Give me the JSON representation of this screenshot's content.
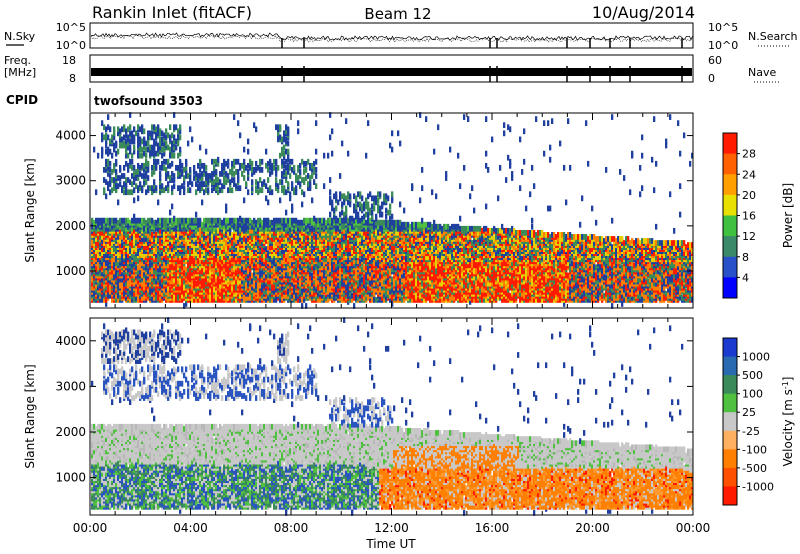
{
  "header": {
    "station": "Rankin Inlet (fitACF)",
    "beam": "Beam 12",
    "date": "10/Aug/2014"
  },
  "top_strip": {
    "left_label": "N.Sky",
    "right_label": "N.Search",
    "left_ticks": [
      "10^5",
      "10^0"
    ],
    "right_ticks": [
      "10^5",
      "10^0"
    ]
  },
  "freq_strip": {
    "left_label_1": "Freq.",
    "left_label_2": "[MHz]",
    "right_label": "Nave",
    "left_ticks": [
      "18",
      "8"
    ],
    "right_ticks": [
      "60",
      "0"
    ]
  },
  "cpid_strip": {
    "label": "CPID",
    "value": "twofsound 3503"
  },
  "colors": {
    "blue": "#1a1aff",
    "navy": "#2040a0",
    "green": "#3a8a5a",
    "lgreen": "#50c040",
    "yellow": "#e8d000",
    "orange": "#ff8000",
    "red": "#ff1a00",
    "gray": "#c8c8c8",
    "dblue": "#2a55c0",
    "vorange": "#ff7f00"
  },
  "chart_data": [
    {
      "type": "heatmap",
      "name": "power",
      "ylabel": "Slant Range [km]",
      "xlabel": "Time UT",
      "xticks": [
        "00:00",
        "04:00",
        "08:00",
        "12:00",
        "16:00",
        "20:00",
        "00:00"
      ],
      "xlim_hours": [
        0,
        24
      ],
      "ylim": [
        180,
        4500
      ],
      "yticks": [
        1000,
        2000,
        3000,
        4000
      ],
      "colorbar": {
        "label": "Power [dB]",
        "ticks": [
          "4",
          "8",
          "12",
          "16",
          "20",
          "24",
          "28"
        ],
        "colors": [
          "#0000ff",
          "#2850c8",
          "#3a8a6a",
          "#40c040",
          "#e8e000",
          "#ffa000",
          "#ff6000",
          "#ff1a00"
        ]
      }
    },
    {
      "type": "heatmap",
      "name": "velocity",
      "ylabel": "Slant Range [km]",
      "xlabel": "Time UT",
      "xticks": [
        "00:00",
        "04:00",
        "08:00",
        "12:00",
        "16:00",
        "20:00",
        "00:00"
      ],
      "xlim_hours": [
        0,
        24
      ],
      "ylim": [
        180,
        4500
      ],
      "yticks": [
        1000,
        2000,
        3000,
        4000
      ],
      "colorbar": {
        "label": "Velocity [m s",
        "label_sup": "-1",
        "ticks": [
          "1000",
          "500",
          "100",
          "25",
          "-25",
          "-100",
          "-500",
          "-1000"
        ],
        "colors": [
          "#1a3ad0",
          "#2a6ab0",
          "#3a8a5a",
          "#50c040",
          "#c8c8c8",
          "#ffb060",
          "#ff8000",
          "#ff5000",
          "#ff1a00"
        ]
      }
    }
  ]
}
